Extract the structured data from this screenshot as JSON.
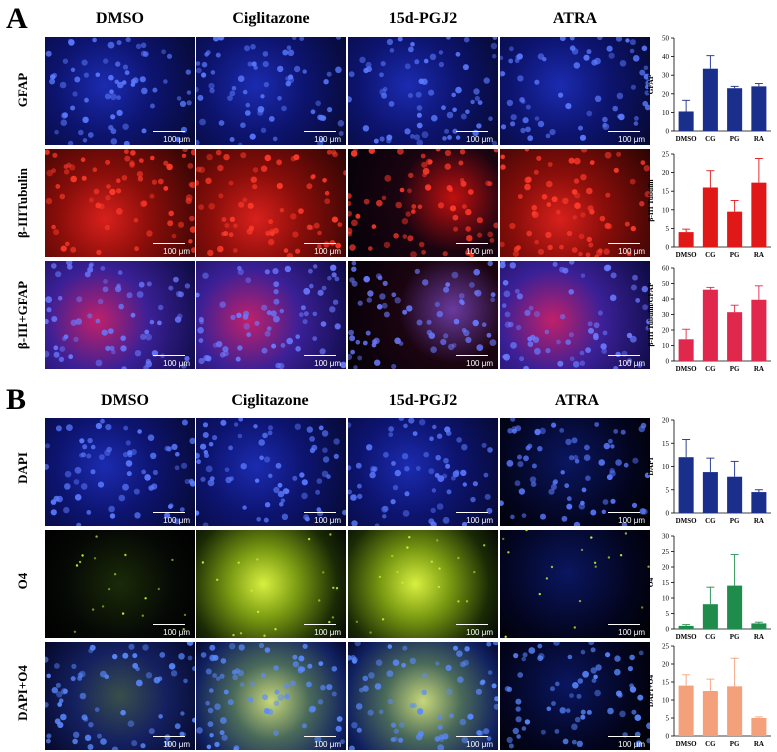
{
  "panels": [
    {
      "letter": "A",
      "columns": [
        "DMSO",
        "Ciglitazone",
        "15d-PGJ2",
        "ATRA"
      ],
      "rows": [
        {
          "label": "GFAP",
          "stain": "blue",
          "scalebar": "100 μm"
        },
        {
          "label": "β-IIITubulin",
          "stain": "red",
          "scalebar": "100 μm"
        },
        {
          "label": "β-III+GFAP",
          "stain": "merge-red",
          "scalebar": "100 μm"
        }
      ]
    },
    {
      "letter": "B",
      "columns": [
        "DMSO",
        "Ciglitazone",
        "15d-PGJ2",
        "ATRA"
      ],
      "rows": [
        {
          "label": "DAPI",
          "stain": "blue",
          "scalebar": "100 μm"
        },
        {
          "label": "O4",
          "stain": "green",
          "scalebar": "100 μm"
        },
        {
          "label": "DAPI+O4",
          "stain": "merge-green",
          "scalebar": "100 μm"
        }
      ]
    }
  ],
  "chart_data": [
    {
      "type": "bar",
      "categories": [
        "DMSO",
        "CG",
        "PG",
        "RA"
      ],
      "values": [
        10.5,
        33.5,
        23,
        24
      ],
      "errors": [
        6,
        7,
        1,
        1.5
      ],
      "ylabel": "GFAP",
      "ylim": [
        0,
        50
      ],
      "yticks": [
        0,
        10,
        20,
        30,
        40,
        50
      ],
      "color": "#1a2e8c"
    },
    {
      "type": "bar",
      "categories": [
        "DMSO",
        "CG",
        "PG",
        "RA"
      ],
      "values": [
        4,
        16,
        9.5,
        17.3
      ],
      "errors": [
        0.8,
        4.5,
        3,
        6.5
      ],
      "ylabel": "β-III Tubulin",
      "ylim": [
        0,
        25
      ],
      "yticks": [
        0,
        5,
        10,
        15,
        20,
        25
      ],
      "color": "#e01818"
    },
    {
      "type": "bar",
      "categories": [
        "DMSO",
        "CG",
        "PG",
        "RA"
      ],
      "values": [
        14,
        46,
        31.5,
        39.5
      ],
      "errors": [
        6.5,
        1.5,
        4.5,
        9
      ],
      "ylabel": "β-III Tubulin/GFAP",
      "ylim": [
        0,
        60
      ],
      "yticks": [
        0,
        10,
        20,
        30,
        40,
        50,
        60
      ],
      "color": "#e0284c"
    },
    {
      "type": "bar",
      "categories": [
        "DMSO",
        "CG",
        "PG",
        "RA"
      ],
      "values": [
        12,
        8.8,
        7.8,
        4.5
      ],
      "errors": [
        3.8,
        3,
        3.3,
        0.5
      ],
      "ylabel": "DAPI",
      "ylim": [
        0,
        20
      ],
      "yticks": [
        0,
        5,
        10,
        15,
        20
      ],
      "color": "#1a2e8c"
    },
    {
      "type": "bar",
      "categories": [
        "DMSO",
        "CG",
        "PG",
        "RA"
      ],
      "values": [
        1,
        8,
        14,
        1.8
      ],
      "errors": [
        0.4,
        5.5,
        10,
        0.4
      ],
      "ylabel": "O4",
      "ylim": [
        0,
        30
      ],
      "yticks": [
        0,
        5,
        10,
        15,
        20,
        25,
        30
      ],
      "color": "#1f8c4c"
    },
    {
      "type": "bar",
      "categories": [
        "DMSO",
        "CG",
        "PG",
        "RA"
      ],
      "values": [
        14,
        12.5,
        13.8,
        5
      ],
      "errors": [
        3,
        3.3,
        7.8,
        0.3
      ],
      "ylabel": "DAPI+O4",
      "ylim": [
        0,
        25
      ],
      "yticks": [
        0,
        5,
        10,
        15,
        20,
        25
      ],
      "color": "#f4a07a"
    }
  ]
}
